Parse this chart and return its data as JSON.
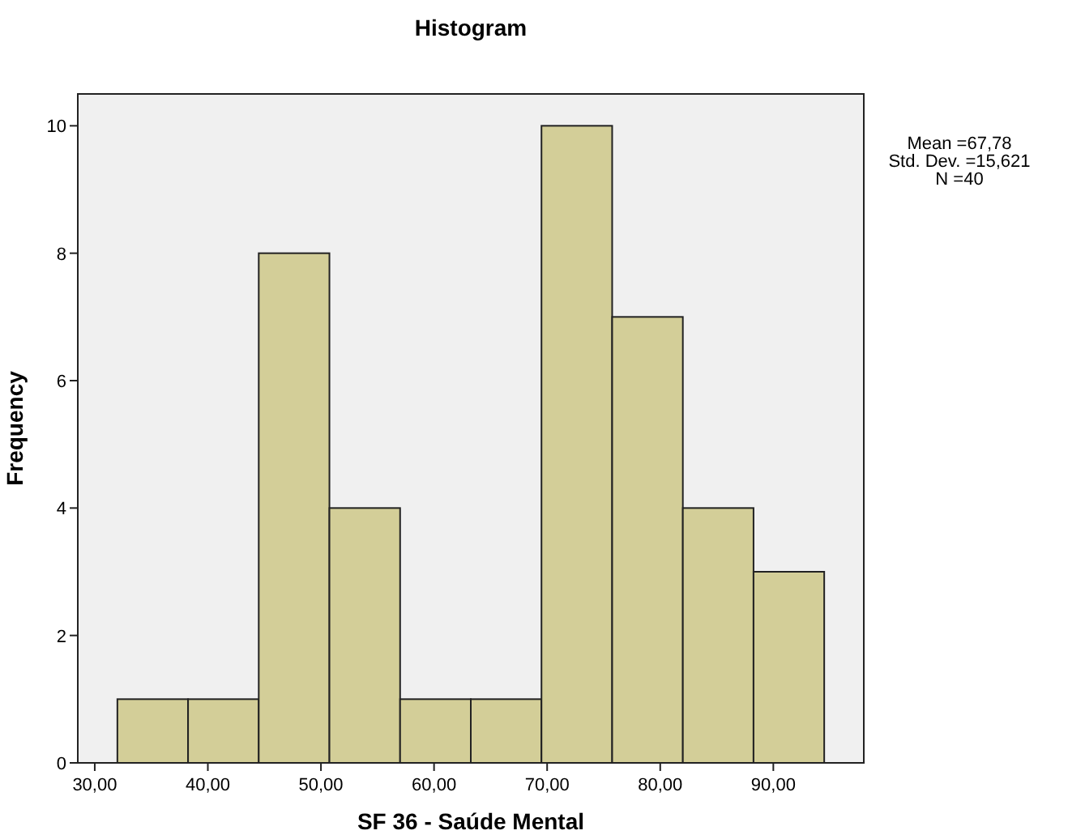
{
  "chart_data": {
    "type": "histogram",
    "title": "Histogram",
    "xlabel": "SF 36 - Saúde Mental",
    "ylabel": "Frequency",
    "bins": [
      32,
      38.25,
      44.5,
      50.75,
      57,
      63.25,
      69.5,
      75.75,
      82,
      88.25,
      94.5
    ],
    "values": [
      1,
      1,
      8,
      4,
      1,
      1,
      10,
      7,
      4,
      3
    ],
    "color": "#d3ce98",
    "xlim": [
      28.5,
      98
    ],
    "xticks": [
      {
        "value": 30,
        "label": "30,00"
      },
      {
        "value": 40,
        "label": "40,00"
      },
      {
        "value": 50,
        "label": "50,00"
      },
      {
        "value": 60,
        "label": "60,00"
      },
      {
        "value": 70,
        "label": "70,00"
      },
      {
        "value": 80,
        "label": "80,00"
      },
      {
        "value": 90,
        "label": "90,00"
      }
    ],
    "ylim": [
      0,
      10.5
    ],
    "yticks": [
      0,
      2,
      4,
      6,
      8,
      10
    ],
    "annotations": [
      "Mean =67,78",
      "Std. Dev. =15,621",
      "N =40"
    ]
  }
}
